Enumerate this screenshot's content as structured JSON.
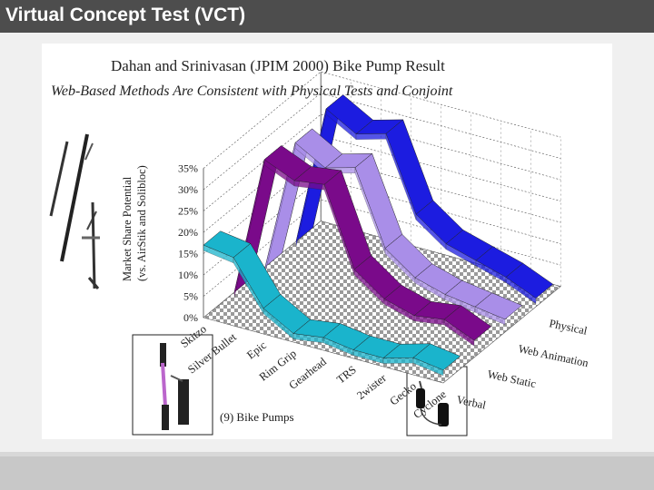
{
  "header": {
    "title": "Virtual Concept Test (VCT)"
  },
  "chart_data": {
    "type": "line",
    "variant": "3d-ribbon",
    "title": "Dahan and Srinivasan (JPIM 2000) Bike Pump Result",
    "subtitle": "Web-Based Methods Are Consistent with Physical Tests and Conjoint",
    "ylabel_line1": "Market Share Potential",
    "ylabel_line2": "(vs. AirStik and Solibloc)",
    "ylim": [
      0,
      0.35
    ],
    "y_ticks": [
      "0%",
      "5%",
      "10%",
      "15%",
      "20%",
      "25%",
      "30%",
      "35%"
    ],
    "categories": [
      "Skitzo",
      "Silver Bullet",
      "Epic",
      "Rim Grip",
      "Gearhead",
      "TRS",
      "2wister",
      "Gecko",
      "Cyclone"
    ],
    "category_caption": "(9) Bike Pumps",
    "series": [
      {
        "name": "Physical",
        "color": "#1c1ce0",
        "values": [
          0.0,
          0.33,
          0.29,
          0.31,
          0.14,
          0.09,
          0.07,
          0.05,
          0.02
        ]
      },
      {
        "name": "Web Animation",
        "color": "#a98ee8",
        "values": [
          0.0,
          0.31,
          0.27,
          0.29,
          0.12,
          0.07,
          0.05,
          0.04,
          0.03
        ]
      },
      {
        "name": "Web Static",
        "color": "#7a0a8a",
        "values": [
          0.0,
          0.33,
          0.3,
          0.31,
          0.13,
          0.08,
          0.06,
          0.07,
          0.04
        ]
      },
      {
        "name": "Verbal",
        "color": "#1ab4cc",
        "values": [
          0.17,
          0.16,
          0.06,
          0.02,
          0.03,
          0.02,
          0.02,
          0.04,
          0.03
        ]
      }
    ],
    "grid": true
  }
}
